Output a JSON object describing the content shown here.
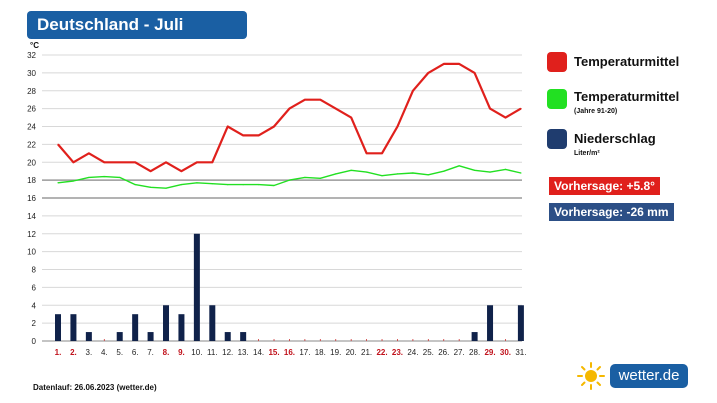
{
  "header": {
    "title": "Deutschland - Juli"
  },
  "legend": {
    "items": [
      {
        "label": "Temperaturmittel",
        "sub": "",
        "color": "#e0201c"
      },
      {
        "label": "Temperaturmittel",
        "sub": "(Jahre 91-20)",
        "color": "#22e022"
      },
      {
        "label": "Niederschlag",
        "sub": "Liter/m²",
        "color": "#1f3c6e"
      }
    ]
  },
  "forecast": {
    "temp_label": "Vorhersage: +5.8°",
    "temp_color": "#e0201c",
    "rain_label": "Vorhersage: -26 mm",
    "rain_color": "#2c4f86"
  },
  "footer": {
    "text": "Datenlauf: 26.06.2023 (wetter.de)"
  },
  "logo": {
    "text": "wetter.de",
    "icon": "sun-icon"
  },
  "chart_data": {
    "type": "line",
    "ylabel": "°C",
    "y_ticks": [
      0,
      2,
      4,
      6,
      8,
      10,
      12,
      14,
      16,
      18,
      20,
      22,
      24,
      26,
      28,
      30,
      32
    ],
    "categories": [
      "1.",
      "2.",
      "3.",
      "4.",
      "5.",
      "6.",
      "7.",
      "8.",
      "9.",
      "10.",
      "11.",
      "12.",
      "13.",
      "14.",
      "15.",
      "16.",
      "17.",
      "18.",
      "19.",
      "20.",
      "21.",
      "22.",
      "23.",
      "24.",
      "25.",
      "26.",
      "27.",
      "28.",
      "29.",
      "30.",
      "31."
    ],
    "weekend_days": [
      1,
      2,
      8,
      9,
      15,
      16,
      22,
      23,
      29,
      30
    ],
    "highlight_color": "#c0101a",
    "grid": true,
    "series": [
      {
        "name": "Temperaturmittel",
        "color": "#e0201c",
        "kind": "line",
        "values": [
          22,
          20,
          21,
          20,
          20,
          20,
          19,
          20,
          19,
          20,
          20,
          24,
          23,
          23,
          24,
          26,
          27,
          27,
          26,
          25,
          21,
          21,
          24,
          28,
          30,
          31,
          31,
          30,
          26,
          25,
          26
        ]
      },
      {
        "name": "Temperaturmittel (Jahre 91-20)",
        "color": "#22e022",
        "kind": "line",
        "values": [
          17.7,
          17.9,
          18.3,
          18.4,
          18.3,
          17.5,
          17.2,
          17.1,
          17.5,
          17.7,
          17.6,
          17.5,
          17.5,
          17.5,
          17.4,
          18.0,
          18.3,
          18.2,
          18.7,
          19.1,
          18.9,
          18.5,
          18.7,
          18.8,
          18.6,
          19.0,
          19.6,
          19.1,
          18.9,
          19.2,
          18.8
        ]
      },
      {
        "name": "Niederschlag",
        "color": "#10224a",
        "kind": "bar",
        "values": [
          3,
          3,
          1,
          0,
          1,
          3,
          1,
          4,
          3,
          12,
          4,
          1,
          1,
          0,
          0,
          0,
          0,
          0,
          0,
          0,
          0,
          0,
          0,
          0,
          0,
          0,
          0,
          1,
          4,
          0,
          4
        ]
      }
    ]
  }
}
